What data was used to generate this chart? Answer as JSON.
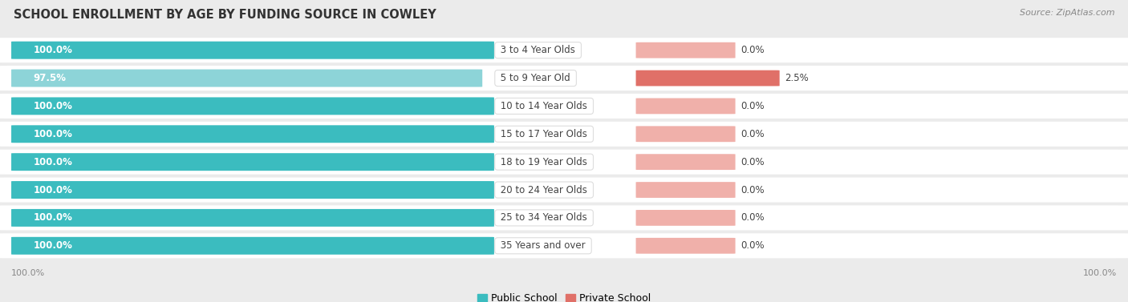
{
  "title": "SCHOOL ENROLLMENT BY AGE BY FUNDING SOURCE IN COWLEY",
  "source": "Source: ZipAtlas.com",
  "categories": [
    "3 to 4 Year Olds",
    "5 to 9 Year Old",
    "10 to 14 Year Olds",
    "15 to 17 Year Olds",
    "18 to 19 Year Olds",
    "20 to 24 Year Olds",
    "25 to 34 Year Olds",
    "35 Years and over"
  ],
  "public_values": [
    100.0,
    97.5,
    100.0,
    100.0,
    100.0,
    100.0,
    100.0,
    100.0
  ],
  "private_values": [
    0.0,
    2.5,
    0.0,
    0.0,
    0.0,
    0.0,
    0.0,
    0.0
  ],
  "public_color_full": "#3bbcbf",
  "public_color_light": "#8dd4d8",
  "private_color_full": "#e07068",
  "private_color_light": "#f0b0aa",
  "row_bg_color": "#ffffff",
  "background_color": "#ebebeb",
  "legend_labels": [
    "Public School",
    "Private School"
  ],
  "title_fontsize": 10.5,
  "source_fontsize": 8,
  "bar_label_fontsize": 8.5,
  "category_fontsize": 8.5,
  "axis_label_fontsize": 8
}
